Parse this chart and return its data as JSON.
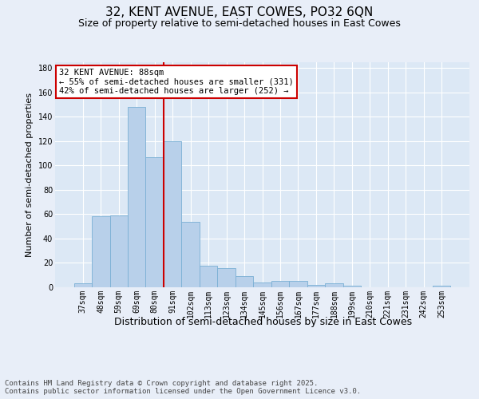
{
  "title1": "32, KENT AVENUE, EAST COWES, PO32 6QN",
  "title2": "Size of property relative to semi-detached houses in East Cowes",
  "xlabel": "Distribution of semi-detached houses by size in East Cowes",
  "ylabel": "Number of semi-detached properties",
  "categories": [
    "37sqm",
    "48sqm",
    "59sqm",
    "69sqm",
    "80sqm",
    "91sqm",
    "102sqm",
    "113sqm",
    "123sqm",
    "134sqm",
    "145sqm",
    "156sqm",
    "167sqm",
    "177sqm",
    "188sqm",
    "199sqm",
    "210sqm",
    "221sqm",
    "231sqm",
    "242sqm",
    "253sqm"
  ],
  "values": [
    3,
    58,
    59,
    148,
    107,
    120,
    54,
    18,
    16,
    9,
    4,
    5,
    5,
    2,
    3,
    1,
    0,
    0,
    0,
    0,
    1
  ],
  "bar_color": "#b8d0ea",
  "bar_edge_color": "#7aafd4",
  "vline_x_index": 4.5,
  "marker_label": "32 KENT AVENUE: 88sqm",
  "smaller_pct": "55%",
  "smaller_count": 331,
  "larger_pct": "42%",
  "larger_count": 252,
  "annotation_box_facecolor": "#ffffff",
  "annotation_box_edgecolor": "#cc0000",
  "vline_color": "#cc0000",
  "ylim": [
    0,
    185
  ],
  "yticks": [
    0,
    20,
    40,
    60,
    80,
    100,
    120,
    140,
    160,
    180
  ],
  "bg_color": "#e8eef8",
  "plot_bg_color": "#dce8f5",
  "footer": "Contains HM Land Registry data © Crown copyright and database right 2025.\nContains public sector information licensed under the Open Government Licence v3.0.",
  "title1_fontsize": 11,
  "title2_fontsize": 9,
  "xlabel_fontsize": 9,
  "ylabel_fontsize": 8,
  "tick_fontsize": 7,
  "footer_fontsize": 6.5,
  "ann_fontsize": 7.5
}
